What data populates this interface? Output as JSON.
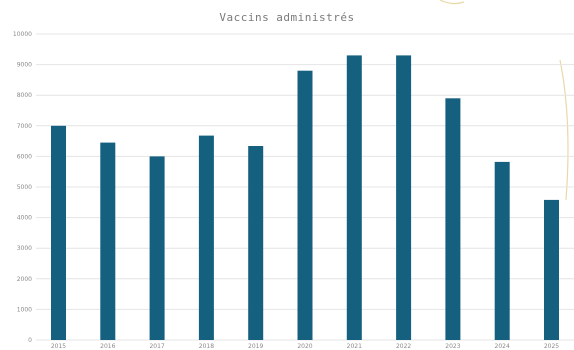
{
  "chart_data": {
    "type": "bar",
    "title": "Vaccins administrés",
    "xlabel": "",
    "ylabel": "",
    "categories": [
      "2015",
      "2016",
      "2017",
      "2018",
      "2019",
      "2020",
      "2021",
      "2022",
      "2023",
      "2024",
      "2025"
    ],
    "values": [
      7000,
      6450,
      6000,
      6680,
      6340,
      8800,
      9300,
      9300,
      7900,
      5820,
      4580
    ],
    "ylim": [
      0,
      10000
    ],
    "yticks": [
      0,
      1000,
      2000,
      3000,
      4000,
      5000,
      6000,
      7000,
      8000,
      9000,
      10000
    ],
    "grid": true,
    "legend": "none",
    "bar_color": "#15607f",
    "grid_color": "#e4e4e4"
  }
}
